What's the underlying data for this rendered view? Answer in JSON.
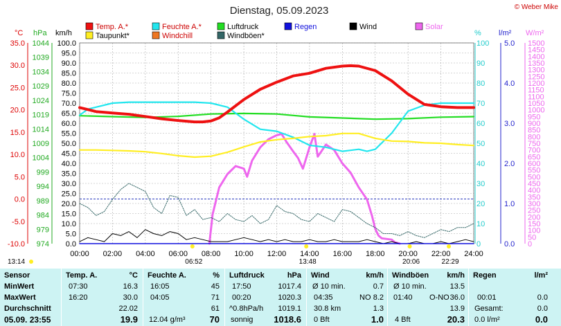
{
  "title": "Dienstag, 05.09.2023",
  "copyright": "© Weber Mike",
  "colors": {
    "temp": "#ee1111",
    "dew": "#ffee22",
    "humidity": "#22e6ee",
    "windchill": "#ee7722",
    "pressure": "#22dd22",
    "gusts": "#336666",
    "rain": "#1111dd",
    "wind": "#000000",
    "solar": "#ee66ee",
    "gridline": "#aaaaaa"
  },
  "legend": [
    {
      "label": "Temp. A.*",
      "color": "#ee1111"
    },
    {
      "label": "Feuchte A.*",
      "color": "#22e6ee"
    },
    {
      "label": "Luftdruck",
      "color": "#22dd22"
    },
    {
      "label": "Regen",
      "color": "#1111dd"
    },
    {
      "label": "Wind",
      "color": "#000000"
    },
    {
      "label": "Solar",
      "color": "#ee66ee"
    },
    {
      "label": "Taupunkt*",
      "color": "#ffee22"
    },
    {
      "label": "Windchill",
      "color": "#ee7722"
    },
    {
      "label": "Windböen*",
      "color": "#336666"
    }
  ],
  "axes": {
    "temp_label": "°C",
    "hpa_label": "hPa",
    "kmh_label": "km/h",
    "pct_label": "%",
    "rain_label": "l/m²",
    "solar_label": "W/m²",
    "temp_ticks": [
      "35.0",
      "30.0",
      "25.0",
      "20.0",
      "15.0",
      "10.0",
      "5.0",
      "0.0",
      "-5.0",
      "-10.0"
    ],
    "hpa_ticks": [
      "1044",
      "1039",
      "1034",
      "1029",
      "1024",
      "1019",
      "1014",
      "1009",
      "1004",
      "999",
      "994",
      "989",
      "984",
      "979",
      "974"
    ],
    "kmh_ticks": [
      "100.0",
      "95.0",
      "90.0",
      "85.0",
      "80.0",
      "75.0",
      "70.0",
      "65.0",
      "60.0",
      "55.0",
      "50.0",
      "45.0",
      "40.0",
      "35.0",
      "30.0",
      "25.0",
      "20.0",
      "15.0",
      "10.0",
      "5.0",
      "0.0"
    ],
    "pct_ticks": [
      "100",
      "90",
      "80",
      "70",
      "60",
      "50",
      "40",
      "30",
      "20",
      "10",
      "0"
    ],
    "rain_ticks": [
      "5.0",
      "4.0",
      "3.0",
      "2.0",
      "1.0",
      "0.0"
    ],
    "solar_ticks": [
      "1500",
      "1450",
      "1400",
      "1350",
      "1300",
      "1250",
      "1200",
      "1150",
      "1100",
      "1050",
      "1000",
      "950",
      "900",
      "850",
      "800",
      "750",
      "700",
      "650",
      "600",
      "550",
      "500",
      "450",
      "400",
      "350",
      "300",
      "250",
      "200",
      "150",
      "100",
      "50",
      "0"
    ],
    "x_ticks": [
      "00:00",
      "02:00",
      "04:00",
      "06:00",
      "08:00",
      "10:00",
      "12:00",
      "14:00",
      "16:00",
      "18:00",
      "20:00",
      "22:00",
      "24:00"
    ]
  },
  "sun_markers": {
    "sunrise_prev": "13:14",
    "sunrise": "06:52",
    "moonset": "13:48",
    "sunset": "20:06",
    "moonrise": "22:29"
  },
  "chart_data": {
    "type": "line",
    "x_unit": "hour",
    "xlim": [
      0,
      24
    ],
    "series": [
      {
        "name": "Temp. A.*",
        "axis": "°C",
        "x": [
          0,
          1,
          2,
          3,
          4,
          5,
          6,
          7,
          7.5,
          8,
          8.5,
          9,
          10,
          11,
          12,
          13,
          14,
          15,
          16,
          16.5,
          17,
          18,
          19,
          20,
          21,
          22,
          23,
          24
        ],
        "values": [
          20.5,
          19.6,
          19.3,
          19.0,
          18.5,
          18.0,
          17.6,
          17.3,
          17.3,
          17.5,
          18.2,
          19.5,
          22.3,
          24.6,
          26.2,
          27.6,
          28.2,
          29.3,
          29.8,
          29.9,
          29.8,
          28.8,
          26.5,
          23.5,
          21.2,
          20.7,
          20.5,
          20.5
        ]
      },
      {
        "name": "Taupunkt*",
        "axis": "°C",
        "x": [
          0,
          1,
          2,
          3,
          4,
          5,
          6,
          7,
          8,
          9,
          10,
          11,
          12,
          13,
          14,
          15,
          16,
          17,
          18,
          19,
          20,
          21,
          22,
          23,
          24
        ],
        "values": [
          11.0,
          11.0,
          10.9,
          10.8,
          10.6,
          10.2,
          9.7,
          9.4,
          9.6,
          10.5,
          11.7,
          12.8,
          13.3,
          13.6,
          14.0,
          14.2,
          14.7,
          14.7,
          13.6,
          13.0,
          12.9,
          12.6,
          12.5,
          12.2,
          12.0
        ]
      },
      {
        "name": "Feuchte A.*",
        "axis": "%",
        "x": [
          0,
          0.5,
          1,
          2,
          3,
          4,
          5,
          6,
          7,
          8,
          9,
          10,
          11,
          12,
          13,
          14,
          15,
          16,
          17,
          17.5,
          18,
          19,
          20,
          21,
          22,
          23,
          24
        ],
        "values": [
          64,
          67,
          68,
          70,
          70.5,
          70.5,
          70.5,
          70.5,
          70.5,
          70,
          68,
          62,
          57,
          56,
          53,
          49,
          48,
          46,
          47,
          46,
          47,
          55,
          66,
          69,
          70,
          70,
          70
        ]
      },
      {
        "name": "Luftdruck",
        "axis": "hPa",
        "x": [
          0,
          2,
          4,
          6,
          8,
          10,
          12,
          14,
          16,
          18,
          20,
          22,
          24
        ],
        "values": [
          1018.6,
          1018.3,
          1018.0,
          1018.4,
          1019.2,
          1019.4,
          1019.2,
          1018.2,
          1017.8,
          1017.4,
          1017.6,
          1018.1,
          1018.3
        ]
      },
      {
        "name": "Windböen*",
        "axis": "km/h",
        "x": [
          0,
          0.5,
          1,
          1.5,
          2,
          2.5,
          3,
          3.5,
          4,
          4.5,
          5,
          5.5,
          6,
          6.5,
          7,
          7.5,
          8,
          8.5,
          9,
          9.5,
          10,
          10.5,
          11,
          11.5,
          12,
          12.5,
          13,
          13.5,
          14,
          14.5,
          15,
          15.5,
          16,
          16.5,
          17,
          17.5,
          18,
          18.5,
          19,
          19.5,
          20,
          20.5,
          21,
          21.5,
          22,
          22.5,
          23,
          23.5,
          24
        ],
        "values": [
          20,
          18,
          14,
          16,
          22,
          27,
          30,
          28,
          26,
          18,
          15,
          24,
          23,
          14,
          17,
          12,
          13,
          11,
          15,
          12,
          11,
          14,
          10,
          12,
          19,
          16,
          15,
          12,
          11,
          15,
          13,
          11,
          17,
          16,
          13,
          10,
          8,
          5,
          5,
          4,
          6,
          4,
          3,
          5,
          7,
          6,
          8,
          8,
          10
        ]
      },
      {
        "name": "Wind",
        "axis": "km/h",
        "x": [
          0,
          0.5,
          1,
          1.5,
          2,
          2.5,
          3,
          3.5,
          4,
          4.5,
          5,
          5.5,
          6,
          6.5,
          7,
          7.5,
          8,
          8.5,
          9,
          9.5,
          10,
          10.5,
          11,
          11.5,
          12,
          12.5,
          13,
          13.5,
          14,
          14.5,
          15,
          15.5,
          16,
          16.5,
          17,
          17.5,
          18,
          18.5,
          19,
          19.5,
          20,
          20.5,
          21,
          21.5,
          22,
          22.5,
          23,
          23.5,
          24
        ],
        "values": [
          1,
          3,
          2,
          1,
          5,
          4,
          6,
          3,
          7,
          5,
          4,
          6,
          5,
          2,
          3,
          2,
          1,
          1,
          1,
          2,
          3,
          2,
          1,
          2,
          1,
          2,
          1,
          1,
          2,
          1,
          1,
          2,
          1,
          1,
          1,
          2,
          1,
          0,
          1,
          0,
          0,
          1,
          0,
          0,
          1,
          0,
          1,
          2,
          1
        ]
      },
      {
        "name": "Solar",
        "axis": "W/m²",
        "x": [
          7.9,
          8.1,
          8.5,
          9,
          9.5,
          10,
          10.2,
          10.5,
          11,
          11.5,
          12,
          12.3,
          12.6,
          13,
          13.3,
          13.6,
          14,
          14.3,
          14.5,
          15,
          15.5,
          16,
          16.5,
          17,
          17.5,
          17.8,
          18,
          18.2,
          18.4,
          19,
          19.2,
          19.5
        ],
        "values": [
          0,
          220,
          420,
          520,
          580,
          560,
          500,
          620,
          720,
          780,
          810,
          820,
          760,
          690,
          640,
          560,
          720,
          820,
          650,
          740,
          700,
          600,
          530,
          420,
          330,
          210,
          110,
          60,
          40,
          30,
          10,
          0
        ]
      },
      {
        "name": "Regen",
        "axis": "l/m²",
        "x": [
          0,
          24
        ],
        "values": [
          0,
          0
        ]
      }
    ]
  },
  "table": {
    "sensor": {
      "header": "Sensor",
      "rows": [
        "MinWert",
        "MaxWert",
        "Durchschnitt"
      ],
      "footer": "05.09.  23:55"
    },
    "temp": {
      "header": "Temp. A.",
      "unit": "°C",
      "min_time": "07:30",
      "min": "16.3",
      "max_time": "16:20",
      "max": "30.0",
      "avg": "22.02",
      "current": "19.9"
    },
    "humidity": {
      "header": "Feuchte A.",
      "unit": "%",
      "min_time": "16:05",
      "min": "45",
      "max_time": "04:05",
      "max": "71",
      "avg": "61",
      "abs": "12.04 g/m³",
      "current": "70"
    },
    "pressure": {
      "header": "Luftdruck",
      "unit": "hPa",
      "min_time": "17:50",
      "min": "1017.4",
      "max_time": "00:20",
      "max": "1020.3",
      "trend": "^0.8hPa/h",
      "avg": "1019.1",
      "forecast": "sonnig",
      "current": "1018.6"
    },
    "wind": {
      "header": "Wind",
      "unit": "km/h",
      "r1a": "Ø 10 min.",
      "r1b": "0.7",
      "r2a": "04:35",
      "r2dir": "NO",
      "r2b": "8.2",
      "r3a": "30.8 km",
      "r3b": "1.3",
      "r4a": "0 Bft",
      "r4b": "1.0"
    },
    "gusts": {
      "header": "Windböen",
      "unit": "km/h",
      "r1a": "Ø 10 min.",
      "r1b": "13.5",
      "r2a": "01:40",
      "r2dir": "O-NO",
      "r2b": "36.0",
      "r3b": "13.9",
      "r4a": "4 Bft",
      "r4b": "20.3"
    },
    "rain": {
      "header": "Regen",
      "unit": "l/m²",
      "r2a": "00:01",
      "r2b": "0.0",
      "r3a": "Gesamt:",
      "r3b": "0.0",
      "r4a": "0.0 l/m²",
      "r4b": "0.0"
    }
  }
}
